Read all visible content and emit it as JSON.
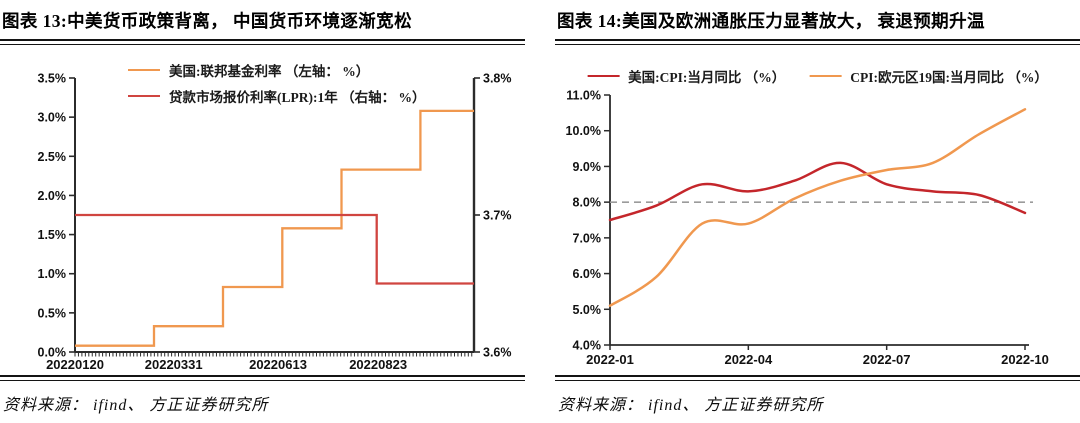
{
  "colors": {
    "orange": "#F0984F",
    "red_lpr": "#D04540",
    "red_cpi": "#C4262B",
    "axis": "#2b2b2b",
    "refline_gray": "#9b9b9b",
    "text": "#111111"
  },
  "chart_data": [
    {
      "type": "line",
      "title": "图表 13:中美货币政策背离， 中国货币环境逐渐宽松",
      "source": "资料来源：  ifind、 方正证券研究所",
      "x_type": "date",
      "x_range": [
        "2022-01-20",
        "2022-10-30"
      ],
      "x_ticks": [
        {
          "date": "2022-01-20",
          "label": "20220120"
        },
        {
          "date": "2022-03-31",
          "label": "20220331"
        },
        {
          "date": "2022-06-13",
          "label": "20220613"
        },
        {
          "date": "2022-08-23",
          "label": "20220823"
        }
      ],
      "axes": {
        "left": {
          "min": 0.0,
          "max": 3.5,
          "tick_values": [
            0.0,
            0.5,
            1.0,
            1.5,
            2.0,
            2.5,
            3.0,
            3.5
          ],
          "tick_labels": [
            "0.0%",
            "0.5%",
            "1.0%",
            "1.5%",
            "2.0%",
            "2.5%",
            "3.0%",
            "3.5%"
          ]
        },
        "right": {
          "min": 3.6,
          "max": 3.8,
          "tick_values": [
            3.6,
            3.7,
            3.8
          ],
          "tick_labels": [
            "3.6%",
            "3.7%",
            "3.8%"
          ]
        }
      },
      "grid": false,
      "legend_position": "top-left-stacked",
      "series": [
        {
          "name": "美国:联邦基金利率 （左轴： %）",
          "axis": "left",
          "line_style": "step",
          "color_key": "orange",
          "points": [
            {
              "date": "2022-01-20",
              "value": 0.08
            },
            {
              "date": "2022-03-17",
              "value": 0.33
            },
            {
              "date": "2022-05-05",
              "value": 0.83
            },
            {
              "date": "2022-06-16",
              "value": 1.58
            },
            {
              "date": "2022-07-28",
              "value": 2.33
            },
            {
              "date": "2022-09-22",
              "value": 3.08
            }
          ]
        },
        {
          "name": "贷款市场报价利率(LPR):1年 （右轴： %）",
          "axis": "right",
          "line_style": "step",
          "color_key": "red_lpr",
          "points": [
            {
              "date": "2022-01-20",
              "value": 3.7
            },
            {
              "date": "2022-08-22",
              "value": 3.65
            }
          ]
        }
      ]
    },
    {
      "type": "line",
      "title": "图表 14:美国及欧洲通胀压力显著放大， 衰退预期升温",
      "source": "资料来源：  ifind、 方正证券研究所",
      "x_type": "category",
      "x": [
        "2022-01",
        "2022-02",
        "2022-03",
        "2022-04",
        "2022-05",
        "2022-06",
        "2022-07",
        "2022-08",
        "2022-09",
        "2022-10"
      ],
      "x_tick_indices": [
        0,
        3,
        6,
        9
      ],
      "x_tick_labels": [
        "2022-01",
        "2022-04",
        "2022-07",
        "2022-10"
      ],
      "ylim": [
        4.0,
        11.0
      ],
      "ytick_values": [
        4.0,
        5.0,
        6.0,
        7.0,
        8.0,
        9.0,
        10.0,
        11.0
      ],
      "ytick_labels": [
        "4.0%",
        "5.0%",
        "6.0%",
        "7.0%",
        "8.0%",
        "9.0%",
        "10.0%",
        "11.0%"
      ],
      "refline": {
        "value": 8.0,
        "style": "dashed",
        "color_key": "refline_gray"
      },
      "grid": false,
      "legend_position": "top-center-row",
      "series": [
        {
          "name": "美国:CPI:当月同比 （%）",
          "line_style": "smooth",
          "color_key": "red_cpi",
          "values": [
            7.5,
            7.9,
            8.5,
            8.3,
            8.6,
            9.1,
            8.5,
            8.3,
            8.2,
            7.7
          ]
        },
        {
          "name": "CPI:欧元区19国:当月同比 （%）",
          "line_style": "smooth",
          "color_key": "orange",
          "values": [
            5.1,
            5.9,
            7.4,
            7.4,
            8.1,
            8.6,
            8.9,
            9.1,
            9.9,
            10.6
          ]
        }
      ]
    }
  ]
}
